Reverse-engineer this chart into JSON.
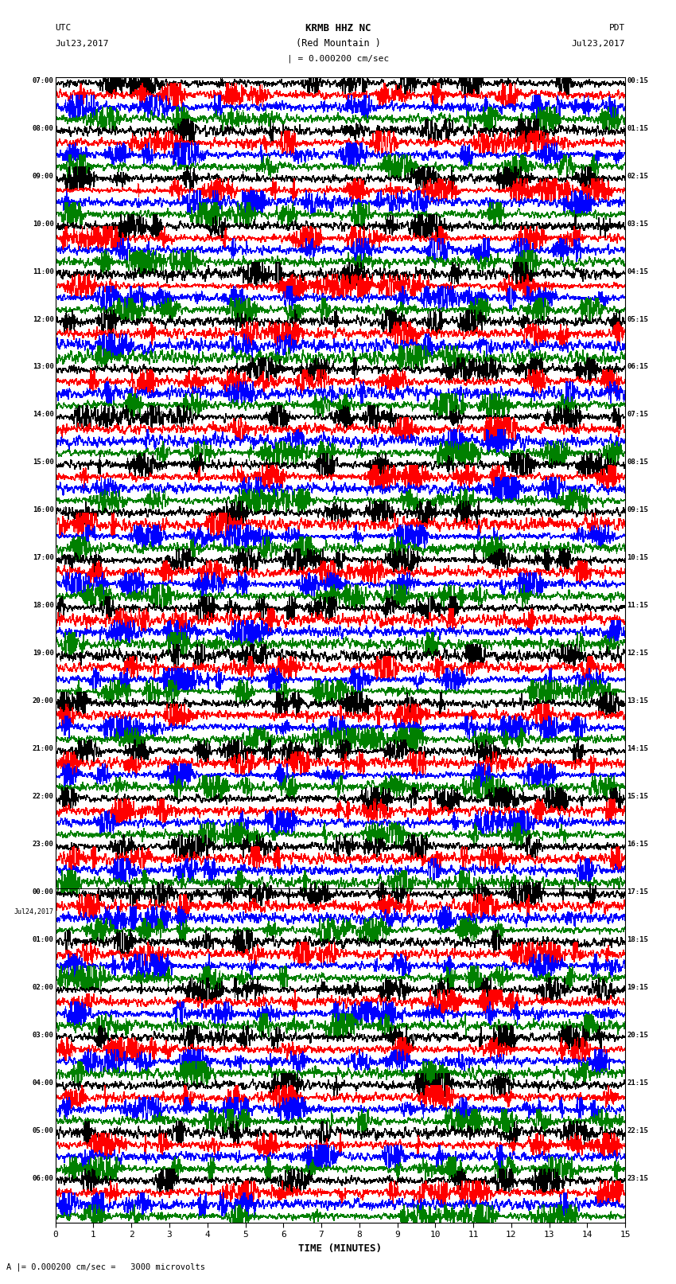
{
  "title_line1": "KRMB HHZ NC",
  "title_line2": "(Red Mountain )",
  "title_scale": "| = 0.000200 cm/sec",
  "label_utc": "UTC",
  "label_pdt": "PDT",
  "label_date_left": "Jul23,2017",
  "label_date_right": "Jul23,2017",
  "xlabel": "TIME (MINUTES)",
  "footer": "A |= 0.000200 cm/sec =   3000 microvolts",
  "trace_colors": [
    "#000000",
    "#ff0000",
    "#0000ff",
    "#008000"
  ],
  "bg_color": "#ffffff",
  "trace_linewidth": 0.4,
  "traces_per_group": 4,
  "n_groups": 24,
  "xlim": [
    0,
    15
  ],
  "figwidth": 8.5,
  "figheight": 16.13,
  "dpi": 100,
  "left_times_utc": [
    "07:00",
    "08:00",
    "09:00",
    "10:00",
    "11:00",
    "12:00",
    "13:00",
    "14:00",
    "15:00",
    "16:00",
    "17:00",
    "18:00",
    "19:00",
    "20:00",
    "21:00",
    "22:00",
    "23:00",
    "00:00",
    "01:00",
    "02:00",
    "03:00",
    "04:00",
    "05:00",
    "06:00"
  ],
  "right_times_pdt": [
    "00:15",
    "01:15",
    "02:15",
    "03:15",
    "04:15",
    "05:15",
    "06:15",
    "07:15",
    "08:15",
    "09:15",
    "10:15",
    "11:15",
    "12:15",
    "13:15",
    "14:15",
    "15:15",
    "16:15",
    "17:15",
    "18:15",
    "19:15",
    "20:15",
    "21:15",
    "22:15",
    "23:15"
  ],
  "midnight_group_idx": 17,
  "jul24_label": "Jul24,2017",
  "n_points": 1800
}
